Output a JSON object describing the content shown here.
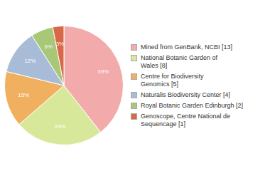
{
  "chart_data": {
    "type": "pie",
    "categories": [
      "Mined from GenBank, NCBI [13]",
      "National Botanic Garden of\nWales [8]",
      "Centre for Biodiversity\nGenomics [5]",
      "Naturalis Biodiversity Center [4]",
      "Royal Botanic Garden Edinburgh [2]",
      "Genoscope, Centre National de\nSequencage [1]"
    ],
    "values": [
      39,
      24,
      15,
      12,
      6,
      3
    ],
    "value_labels": [
      "39%",
      "24%",
      "15%",
      "12%",
      "6%",
      "3%"
    ],
    "data_labels": true,
    "colors": [
      "#f2aaaa",
      "#d8e89a",
      "#f0b060",
      "#a8bcd8",
      "#a8c878",
      "#d86848"
    ]
  }
}
